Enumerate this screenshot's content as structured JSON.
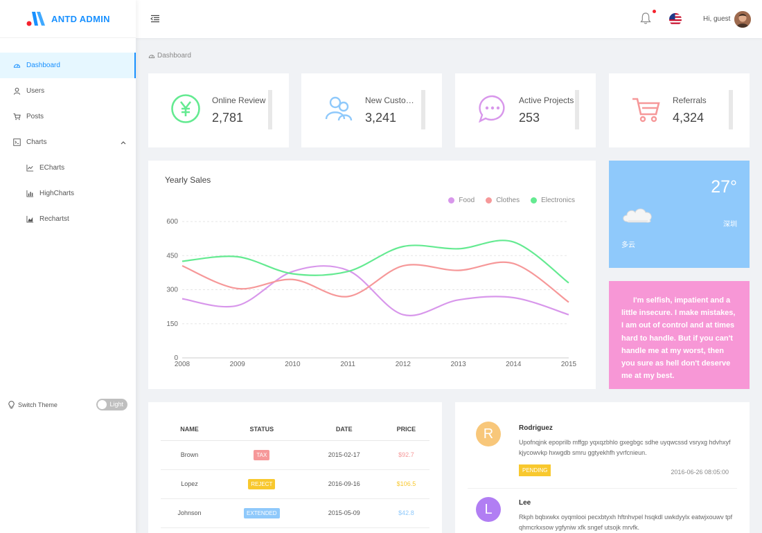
{
  "app": {
    "title": "ANTD ADMIN"
  },
  "sidebar": {
    "items": [
      {
        "label": "Dashboard",
        "icon": "dashboard-icon"
      },
      {
        "label": "Users",
        "icon": "user-icon"
      },
      {
        "label": "Posts",
        "icon": "shopping-cart-icon"
      },
      {
        "label": "Charts",
        "icon": "code-icon"
      },
      {
        "label": "ECharts",
        "icon": "line-chart-icon"
      },
      {
        "label": "HighCharts",
        "icon": "bar-chart-icon"
      },
      {
        "label": "Rechartst",
        "icon": "area-chart-icon"
      }
    ],
    "switch_label": "Switch Theme",
    "toggle_label": "Light"
  },
  "header": {
    "greeting": "Hi, guest",
    "notification_icon": "bell-icon",
    "language_icon": "us-flag-icon"
  },
  "breadcrumb": {
    "label": "Dashboard"
  },
  "numbers": [
    {
      "title": "Online Review",
      "value": "2,781",
      "icon": "yuan-icon",
      "color": "#64ea91"
    },
    {
      "title": "New Customers",
      "value": "3,241",
      "icon": "team-icon",
      "color": "#8fc9fb"
    },
    {
      "title": "Active Projects",
      "value": "253",
      "icon": "message-icon",
      "color": "#d897eb"
    },
    {
      "title": "Referrals",
      "value": "4,324",
      "icon": "shopping-cart-icon",
      "color": "#f69899"
    }
  ],
  "chart_data": {
    "type": "line",
    "title": "Yearly Sales",
    "x": [
      "2008",
      "2009",
      "2010",
      "2011",
      "2012",
      "2013",
      "2014",
      "2015"
    ],
    "series": [
      {
        "name": "Food",
        "color": "#d897eb",
        "values": [
          260,
          230,
          380,
          385,
          190,
          255,
          265,
          190
        ]
      },
      {
        "name": "Clothes",
        "color": "#f69899",
        "values": [
          405,
          305,
          345,
          270,
          405,
          385,
          415,
          245
        ]
      },
      {
        "name": "Electronics",
        "color": "#64ea91",
        "values": [
          425,
          445,
          370,
          380,
          490,
          480,
          510,
          330
        ]
      }
    ],
    "ylim": [
      0,
      600
    ],
    "yticks": [
      "0",
      "150",
      "300",
      "450",
      "600"
    ],
    "legend": "top-right",
    "grid": true
  },
  "weather": {
    "temperature": "27°",
    "city": "深圳",
    "condition": "多云",
    "icon": "cloud-icon"
  },
  "quote": {
    "text": "I'm selfish, impatient and a little insecure. I make mistakes, I am out of control and at times hard to handle. But if you can't handle me at my worst, then you sure as hell don't deserve me at my best."
  },
  "sales_table": {
    "headers": [
      "NAME",
      "STATUS",
      "DATE",
      "PRICE"
    ],
    "rows": [
      {
        "name": "Brown",
        "status": "TAX",
        "status_color": "#f69899",
        "date": "2015-02-17",
        "price": "$92.7",
        "price_color": "#f69899"
      },
      {
        "name": "Lopez",
        "status": "REJECT",
        "status_color": "#f8c82e",
        "date": "2016-09-16",
        "price": "$106.5",
        "price_color": "#f8c82e"
      },
      {
        "name": "Johnson",
        "status": "EXTENDED",
        "status_color": "#8fc9fb",
        "date": "2015-05-09",
        "price": "$42.8",
        "price_color": "#8fc9fb"
      }
    ]
  },
  "comments": [
    {
      "initial": "R",
      "avatar_color": "#f8c77a",
      "name": "Rodriguez",
      "content": "Upofnqjnk epoprilb mffgp yqxqzbhlo gxegbgc sdhe uyqwcssd vsryxg hdvhxyf kjycowvkp hxwgdb smru ggtyekhfh yvrfcnieun.",
      "status": "PENDING",
      "date": "2016-06-26 08:05:00"
    },
    {
      "initial": "L",
      "avatar_color": "#b17ef3",
      "name": "Lee",
      "content": "Rkph bqbxwkx oyqmlooi pecxbtyxh hftnhvpel hsqkdl uwkdyylx eatwjxouwv tpf qhmcrkxsow ygfyniw xfk sngef utsojk mrvfk."
    }
  ]
}
